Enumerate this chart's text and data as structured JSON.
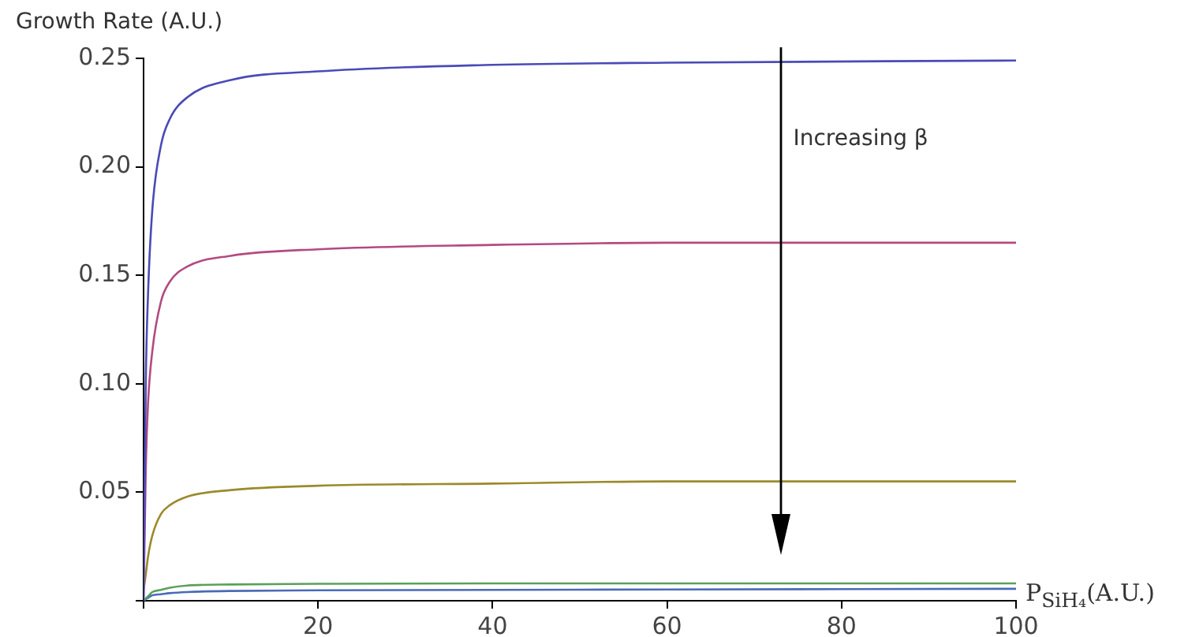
{
  "chart_data": {
    "type": "line",
    "ylabel": "Growth Rate (A.U.)",
    "xlabel": "P$_{SiH₄}$(A.U.)",
    "annotations": [
      "Increasing β"
    ],
    "x": [
      0,
      0.25,
      0.5,
      1,
      2,
      3,
      5,
      10,
      20,
      40,
      60,
      100
    ],
    "series": [
      {
        "color": "#4a4ab8",
        "values": [
          0,
          0.1,
          0.14,
          0.18,
          0.21,
          0.222,
          0.232,
          0.24,
          0.244,
          0.247,
          0.248,
          0.249
        ]
      },
      {
        "color": "#b34a80",
        "values": [
          0,
          0.06,
          0.09,
          0.115,
          0.138,
          0.147,
          0.154,
          0.159,
          0.162,
          0.164,
          0.165,
          0.165
        ]
      },
      {
        "color": "#9a8a2a",
        "values": [
          0.005,
          0.012,
          0.02,
          0.03,
          0.04,
          0.044,
          0.048,
          0.051,
          0.053,
          0.054,
          0.055,
          0.055
        ]
      },
      {
        "color": "#5aa05a",
        "values": [
          0,
          0.001,
          0.002,
          0.004,
          0.005,
          0.006,
          0.007,
          0.0075,
          0.0078,
          0.008,
          0.008,
          0.008
        ]
      },
      {
        "color": "#4a6ab8",
        "values": [
          0,
          0.0007,
          0.0013,
          0.0025,
          0.003,
          0.0035,
          0.004,
          0.0045,
          0.0048,
          0.005,
          0.0052,
          0.0055
        ]
      }
    ],
    "xlim": [
      0,
      100
    ],
    "xticks": [
      {
        "value": 0,
        "label": null
      },
      20,
      40,
      60,
      80,
      100
    ],
    "ylim": [
      0,
      0.25
    ],
    "yticks": [
      {
        "value": 0,
        "label": null
      },
      0.05,
      {
        "value": 0.1,
        "label": "0.10"
      },
      0.15,
      {
        "value": 0.2,
        "label": "0.20"
      },
      0.25
    ],
    "grid": false,
    "legend": false,
    "marker": "none",
    "line_style": "solid"
  }
}
